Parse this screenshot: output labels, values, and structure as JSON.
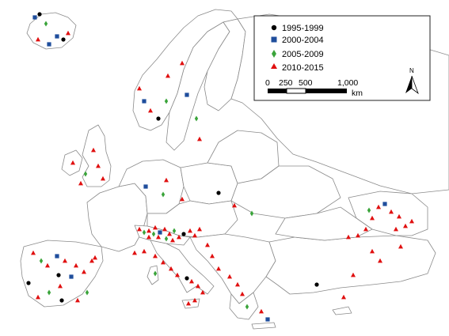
{
  "legend": {
    "items": [
      {
        "label": "1995-1999",
        "symbol": "circle",
        "color": "#000000"
      },
      {
        "label": "2000-2004",
        "symbol": "square",
        "color": "#1f4e9c"
      },
      {
        "label": "2005-2009",
        "symbol": "diamond",
        "color": "#3aa43a"
      },
      {
        "label": "2010-2015",
        "symbol": "triangle",
        "color": "#e01010"
      }
    ],
    "scale": {
      "ticks": [
        "0",
        "250",
        "500",
        "1,000"
      ],
      "unit": "km"
    },
    "north_label": "N"
  },
  "colors": {
    "land_fill": "#ffffff",
    "border": "#8a8a8a"
  }
}
